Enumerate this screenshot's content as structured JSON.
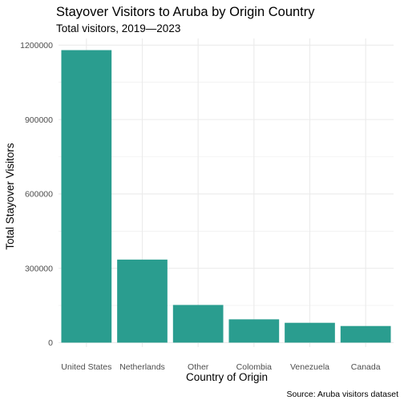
{
  "chart_data": {
    "type": "bar",
    "title": "Stayover Visitors to Aruba by Origin Country",
    "subtitle": "Total visitors, 2019—2023",
    "xlabel": "Country of Origin",
    "ylabel": "Total Stayover Visitors",
    "caption": "Source: Aruba visitors dataset",
    "categories": [
      "United States",
      "Netherlands",
      "Other",
      "Colombia",
      "Venezuela",
      "Canada"
    ],
    "values": [
      1180000,
      335000,
      152000,
      94000,
      80000,
      67000
    ],
    "ylim": [
      0,
      1200000
    ],
    "yticks": [
      0,
      300000,
      600000,
      900000,
      1200000
    ],
    "ytick_labels": [
      "0",
      "300000",
      "600000",
      "900000",
      "1200000"
    ],
    "grid": true,
    "legend": "none",
    "bar_color": "#2a9d8f",
    "grid_color": "#ebebeb"
  }
}
